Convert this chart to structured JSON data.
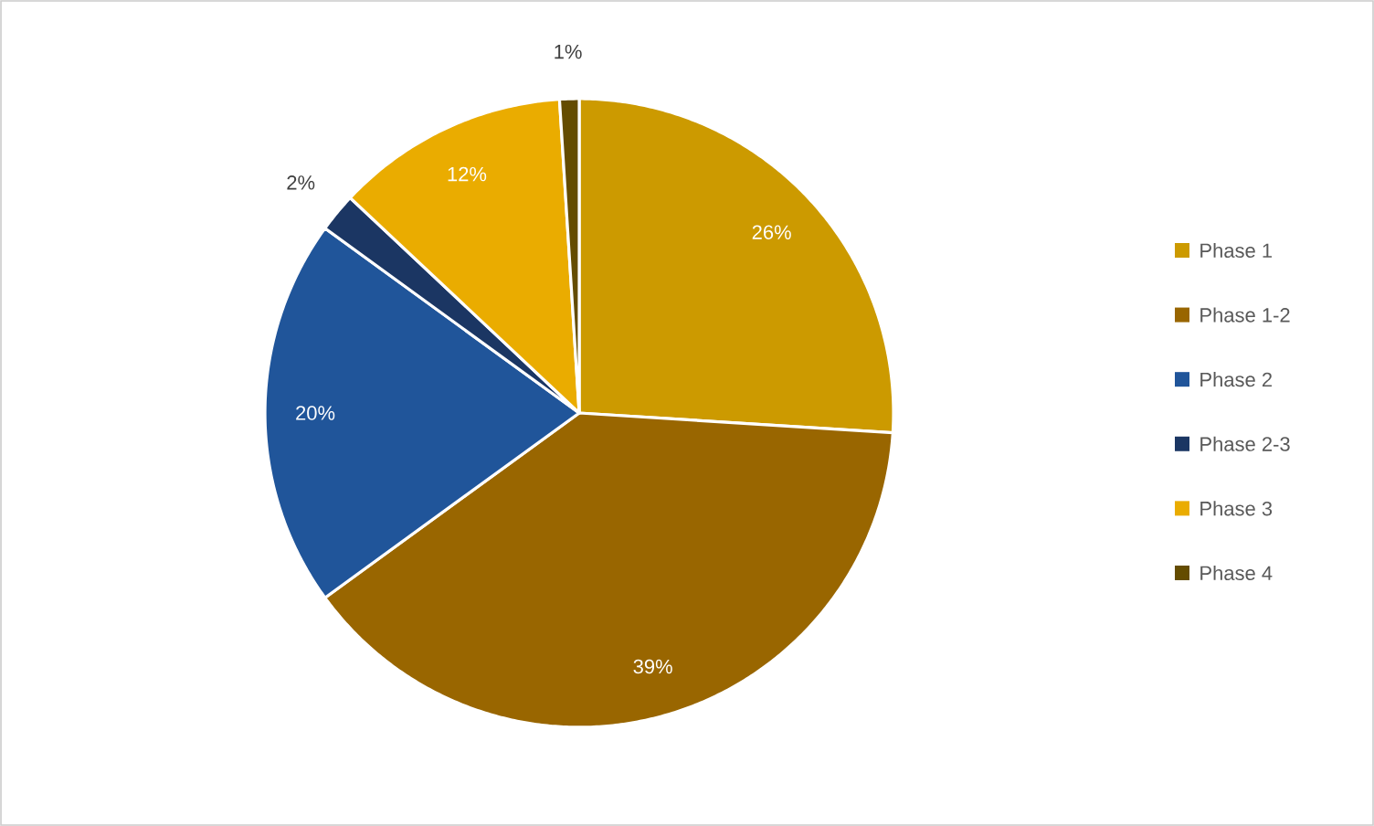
{
  "chart_data": {
    "type": "pie",
    "categories": [
      "Phase 1",
      "Phase 1-2",
      "Phase 2",
      "Phase 2-3",
      "Phase 3",
      "Phase 4"
    ],
    "values": [
      26,
      39,
      20,
      2,
      12,
      1
    ],
    "colors": [
      "#cc9a00",
      "#996600",
      "#20559a",
      "#1b3663",
      "#eaac00",
      "#644c00"
    ],
    "value_labels": [
      "26%",
      "39%",
      "20%",
      "2%",
      "12%",
      "1%"
    ],
    "legend": "right"
  }
}
